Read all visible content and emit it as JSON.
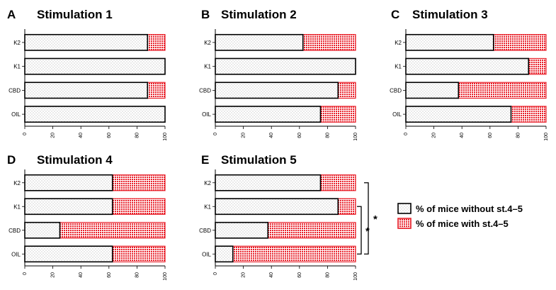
{
  "colors": {
    "without_fill_bg": "#ffffff",
    "without_dot": "#9a9a9a",
    "with_fill_bg": "#ffffff",
    "with_dot": "#e8202a",
    "with_border": "#e8202a",
    "bar_border": "#000000"
  },
  "legend": {
    "without": "% of mice without st.4–5",
    "with": "% of mice with st.4–5"
  },
  "chart_data": [
    {
      "type": "bar",
      "orientation": "horizontal",
      "stacked": true,
      "letter": "A",
      "title": "Stimulation 1",
      "categories": [
        "K2",
        "K1",
        "CBD",
        "OIL"
      ],
      "series": [
        {
          "name": "% of mice without st.4–5",
          "values": [
            87.5,
            100,
            87.5,
            100
          ]
        },
        {
          "name": "% of mice with st.4–5",
          "values": [
            12.5,
            0,
            12.5,
            0
          ]
        }
      ],
      "xlim": [
        0,
        100
      ],
      "xticks": [
        "0",
        "20",
        "40",
        "60",
        "80",
        "100"
      ]
    },
    {
      "type": "bar",
      "orientation": "horizontal",
      "stacked": true,
      "letter": "B",
      "title": "Stimulation 2",
      "categories": [
        "K2",
        "K1",
        "CBD",
        "OIL"
      ],
      "series": [
        {
          "name": "% of mice without st.4–5",
          "values": [
            62.5,
            100,
            87.5,
            75
          ]
        },
        {
          "name": "% of mice with st.4–5",
          "values": [
            37.5,
            0,
            12.5,
            25
          ]
        }
      ],
      "xlim": [
        0,
        100
      ],
      "xticks": [
        "0",
        "20",
        "40",
        "60",
        "80",
        "100"
      ]
    },
    {
      "type": "bar",
      "orientation": "horizontal",
      "stacked": true,
      "letter": "C",
      "title": "Stimulation 3",
      "categories": [
        "K2",
        "K1",
        "CBD",
        "OIL"
      ],
      "series": [
        {
          "name": "% of mice without st.4–5",
          "values": [
            62.5,
            87.5,
            37.5,
            75
          ]
        },
        {
          "name": "% of mice with st.4–5",
          "values": [
            37.5,
            12.5,
            62.5,
            25
          ]
        }
      ],
      "xlim": [
        0,
        100
      ],
      "xticks": [
        "0",
        "20",
        "40",
        "60",
        "80",
        "100"
      ]
    },
    {
      "type": "bar",
      "orientation": "horizontal",
      "stacked": true,
      "letter": "D",
      "title": "Stimulation 4",
      "categories": [
        "K2",
        "K1",
        "CBD",
        "OIL"
      ],
      "series": [
        {
          "name": "% of mice without st.4–5",
          "values": [
            62.5,
            62.5,
            25,
            62.5
          ]
        },
        {
          "name": "% of mice with st.4–5",
          "values": [
            37.5,
            37.5,
            75,
            37.5
          ]
        }
      ],
      "xlim": [
        0,
        100
      ],
      "xticks": [
        "0",
        "20",
        "40",
        "60",
        "80",
        "100"
      ]
    },
    {
      "type": "bar",
      "orientation": "horizontal",
      "stacked": true,
      "letter": "E",
      "title": "Stimulation 5",
      "categories": [
        "K2",
        "K1",
        "CBD",
        "OIL"
      ],
      "series": [
        {
          "name": "% of mice without st.4–5",
          "values": [
            75,
            87.5,
            37.5,
            12.5
          ]
        },
        {
          "name": "% of mice with st.4–5",
          "values": [
            25,
            12.5,
            62.5,
            87.5
          ]
        }
      ],
      "xlim": [
        0,
        100
      ],
      "xticks": [
        "0",
        "20",
        "40",
        "60",
        "80",
        "100"
      ],
      "significance": [
        {
          "from": "K2",
          "to": "OIL",
          "label": "*"
        },
        {
          "from": "K1",
          "to": "OIL",
          "label": "*"
        }
      ]
    }
  ]
}
